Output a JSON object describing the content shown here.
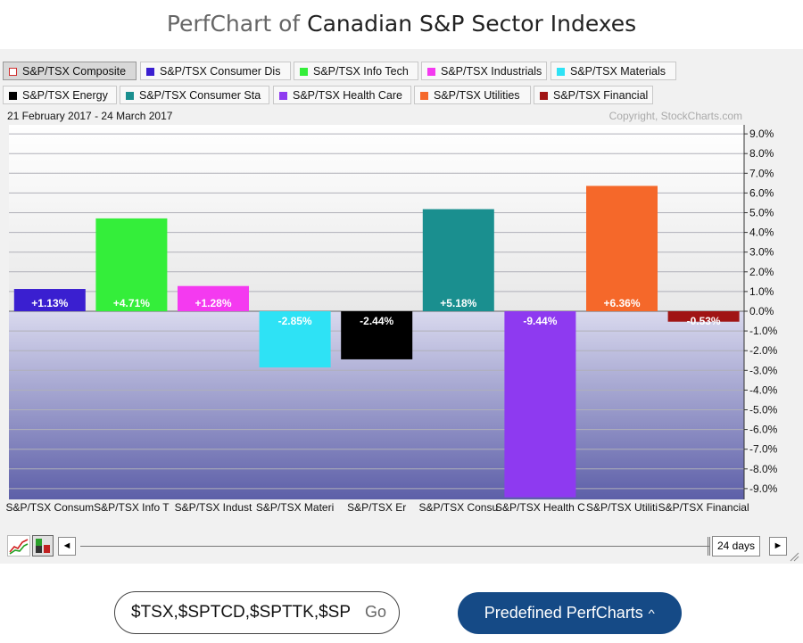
{
  "header": {
    "title_lead": "PerfChart of",
    "title_main": "Canadian S&P Sector Indexes"
  },
  "legend": [
    {
      "label": "S&P/TSX Composite",
      "color": "#ffffff",
      "selected": true
    },
    {
      "label": "S&P/TSX Consumer Dis",
      "color": "#3a1fd0"
    },
    {
      "label": "S&P/TSX Info Tech",
      "color": "#34ee3a"
    },
    {
      "label": "S&P/TSX Industrials",
      "color": "#f43af0"
    },
    {
      "label": "S&P/TSX Materials",
      "color": "#2ee2f5"
    },
    {
      "label": "S&P/TSX Energy",
      "color": "#000000"
    },
    {
      "label": "S&P/TSX Consumer Sta",
      "color": "#1a8f8f"
    },
    {
      "label": "S&P/TSX Health Care",
      "color": "#8e3af0"
    },
    {
      "label": "S&P/TSX Utilities",
      "color": "#f5682a"
    },
    {
      "label": "S&P/TSX Financial",
      "color": "#a01414"
    }
  ],
  "chart_data": {
    "type": "bar",
    "date_range": "21 February 2017 - 24 March 2017",
    "copyright": "Copyright, StockCharts.com",
    "categories": [
      "S&P/TSX Consum",
      "S&P/TSX Info T",
      "S&P/TSX Indust",
      "S&P/TSX Materi",
      "S&P/TSX Er",
      "S&P/TSX Consu",
      "S&P/TSX Health C",
      "S&P/TSX Utiliti",
      "S&P/TSX Financial"
    ],
    "values": [
      1.13,
      4.71,
      1.28,
      -2.85,
      -2.44,
      5.18,
      -9.44,
      6.36,
      -0.53
    ],
    "data_labels": [
      "+1.13%",
      "+4.71%",
      "+1.28%",
      "-2.85%",
      "-2.44%",
      "+5.18%",
      "-9.44%",
      "+6.36%",
      "-0.53%"
    ],
    "colors": [
      "#3a1fd0",
      "#34ee3a",
      "#f43af0",
      "#2ee2f5",
      "#000000",
      "#1a8f8f",
      "#8e3af0",
      "#f5682a",
      "#a01414"
    ],
    "ylim": [
      -9.5,
      9.5
    ],
    "yticks": [
      9,
      8,
      7,
      6,
      5,
      4,
      3,
      2,
      1,
      0,
      -1,
      -2,
      -3,
      -4,
      -5,
      -6,
      -7,
      -8,
      -9
    ],
    "ytick_labels": [
      "9.0%",
      "8.0%",
      "7.0%",
      "6.0%",
      "5.0%",
      "4.0%",
      "3.0%",
      "2.0%",
      "1.0%",
      "0.0%",
      "-1.0%",
      "-2.0%",
      "-3.0%",
      "-4.0%",
      "-5.0%",
      "-6.0%",
      "-7.0%",
      "-8.0%",
      "-9.0%"
    ],
    "grid": true,
    "yaxis_position": "right"
  },
  "controls": {
    "period": "24 days",
    "left_arrow": "◄",
    "right_arrow": "►"
  },
  "search": {
    "value": "$TSX,$SPTCD,$SPTTK,$SP",
    "go_label": "Go"
  },
  "predefined": {
    "label": "Predefined PerfCharts",
    "chevron": "^"
  }
}
